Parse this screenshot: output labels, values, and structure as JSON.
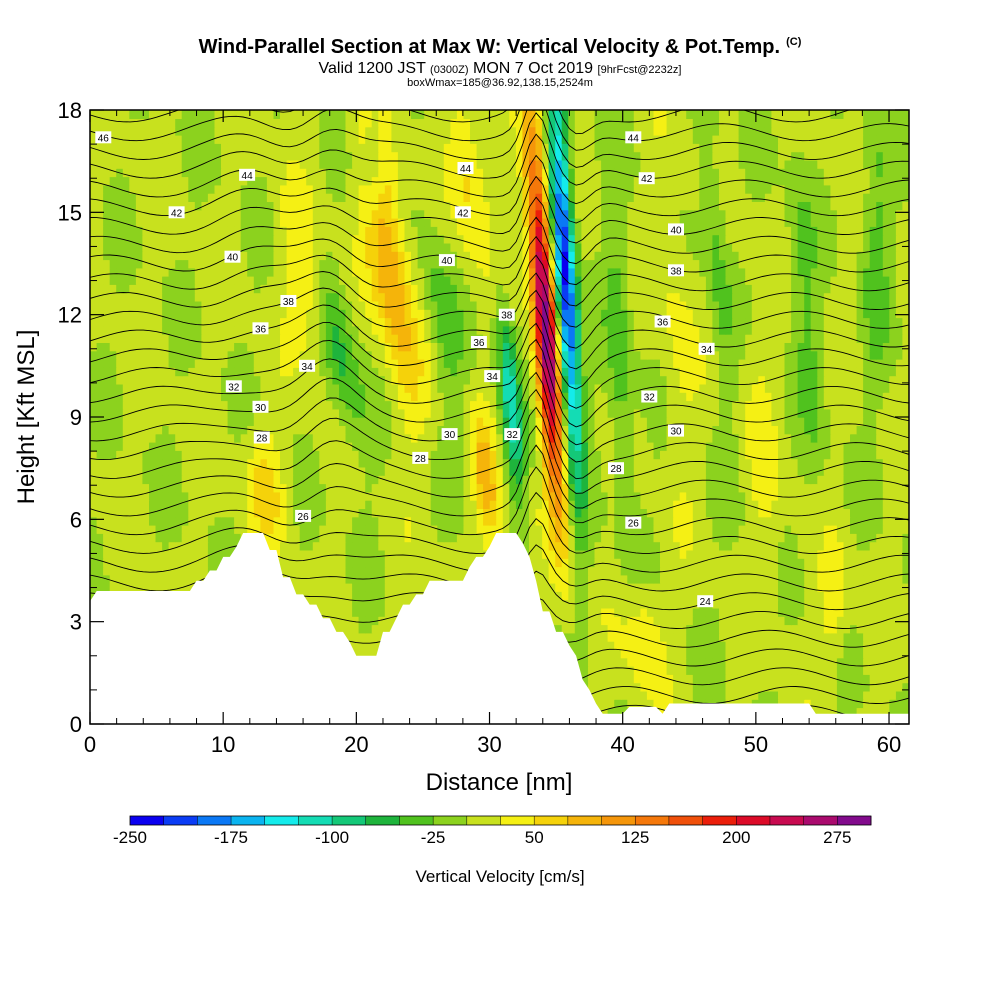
{
  "title": {
    "main": "Wind-Parallel Section at Max W: Vertical Velocity & Pot.Temp.",
    "copyright": "(C)",
    "valid_prefix": "Valid 1200 JST",
    "valid_utc": "(0300Z)",
    "valid_date": "MON 7 Oct 2019",
    "forecast": "[9hrFcst@2232z]",
    "box_info": "boxWmax=185@36.92,138.15,2524m"
  },
  "chart_data": {
    "type": "heatmap",
    "xlabel": "Distance [nm]",
    "ylabel": "Height [Kft MSL]",
    "xlim": [
      0,
      61.5
    ],
    "ylim": [
      0,
      18
    ],
    "x_ticks": [
      0,
      10,
      20,
      30,
      40,
      50,
      60
    ],
    "y_ticks": [
      0,
      3,
      6,
      9,
      12,
      15,
      18
    ],
    "colorbar": {
      "label": "Vertical Velocity [cm/s]",
      "tick_labels": [
        "-250",
        "-175",
        "-100",
        "-25",
        "50",
        "125",
        "200",
        "275"
      ],
      "tick_values": [
        -250,
        -175,
        -100,
        -25,
        50,
        125,
        200,
        275
      ],
      "range": [
        -250,
        300
      ],
      "step": 25,
      "colors": [
        "#0a00f0",
        "#0a3cf5",
        "#0a78f5",
        "#0ab4f0",
        "#14ebeb",
        "#14dcb4",
        "#14c878",
        "#1eb43c",
        "#50c21e",
        "#8cd21e",
        "#c8e11e",
        "#f5f014",
        "#f5d20a",
        "#f5b40a",
        "#f5960a",
        "#f5780a",
        "#f0500a",
        "#eb1e0a",
        "#dc0a28",
        "#c80a50",
        "#aa0a6e",
        "#820a8c"
      ]
    },
    "theta_contour_labels": [
      {
        "label": "46",
        "x": 1,
        "y": 17.2
      },
      {
        "label": "44",
        "x": 11.8,
        "y": 16.1
      },
      {
        "label": "42",
        "x": 6.5,
        "y": 15
      },
      {
        "label": "40",
        "x": 10.7,
        "y": 13.7
      },
      {
        "label": "38",
        "x": 14.9,
        "y": 12.4
      },
      {
        "label": "36",
        "x": 12.8,
        "y": 11.6
      },
      {
        "label": "34",
        "x": 16.3,
        "y": 10.5
      },
      {
        "label": "32",
        "x": 10.8,
        "y": 9.9
      },
      {
        "label": "30",
        "x": 12.8,
        "y": 9.3
      },
      {
        "label": "28",
        "x": 12.9,
        "y": 8.4
      },
      {
        "label": "26",
        "x": 16,
        "y": 6.1
      },
      {
        "label": "44",
        "x": 28.2,
        "y": 16.3
      },
      {
        "label": "42",
        "x": 28,
        "y": 15
      },
      {
        "label": "40",
        "x": 26.8,
        "y": 13.6
      },
      {
        "label": "38",
        "x": 31.3,
        "y": 12
      },
      {
        "label": "36",
        "x": 29.2,
        "y": 11.2
      },
      {
        "label": "34",
        "x": 30.2,
        "y": 10.2
      },
      {
        "label": "32",
        "x": 31.7,
        "y": 8.5
      },
      {
        "label": "30",
        "x": 27,
        "y": 8.5
      },
      {
        "label": "28",
        "x": 24.8,
        "y": 7.8
      },
      {
        "label": "44",
        "x": 40.8,
        "y": 17.2
      },
      {
        "label": "42",
        "x": 41.8,
        "y": 16
      },
      {
        "label": "40",
        "x": 44,
        "y": 14.5
      },
      {
        "label": "38",
        "x": 44,
        "y": 13.3
      },
      {
        "label": "36",
        "x": 43,
        "y": 11.8
      },
      {
        "label": "34",
        "x": 46.3,
        "y": 11
      },
      {
        "label": "32",
        "x": 42,
        "y": 9.6
      },
      {
        "label": "30",
        "x": 44,
        "y": 8.6
      },
      {
        "label": "28",
        "x": 39.5,
        "y": 7.5
      },
      {
        "label": "26",
        "x": 40.8,
        "y": 5.9
      },
      {
        "label": "24",
        "x": 46.2,
        "y": 3.6
      }
    ],
    "terrain": [
      [
        0,
        3.6
      ],
      [
        0.5,
        3.9
      ],
      [
        7.5,
        3.9
      ],
      [
        8,
        4.2
      ],
      [
        8.5,
        4.2
      ],
      [
        9,
        4.5
      ],
      [
        9.5,
        4.5
      ],
      [
        10,
        4.9
      ],
      [
        10.5,
        4.9
      ],
      [
        11,
        5.2
      ],
      [
        11.5,
        5.6
      ],
      [
        13,
        5.6
      ],
      [
        13.5,
        5.1
      ],
      [
        14,
        5.1
      ],
      [
        14.5,
        4.3
      ],
      [
        15,
        4.3
      ],
      [
        15.5,
        3.8
      ],
      [
        16,
        3.8
      ],
      [
        16.5,
        3.5
      ],
      [
        17,
        3.5
      ],
      [
        17.5,
        3.1
      ],
      [
        18,
        3.1
      ],
      [
        18.5,
        2.7
      ],
      [
        19,
        2.7
      ],
      [
        19.5,
        2.4
      ],
      [
        20,
        2
      ],
      [
        21.5,
        2
      ],
      [
        22,
        2.7
      ],
      [
        22.5,
        2.7
      ],
      [
        23,
        3.1
      ],
      [
        23.5,
        3.5
      ],
      [
        24,
        3.5
      ],
      [
        24.5,
        3.8
      ],
      [
        25,
        3.8
      ],
      [
        25.5,
        4.2
      ],
      [
        26,
        4.2
      ],
      [
        26.5,
        4.2
      ],
      [
        28,
        4.2
      ],
      [
        28.5,
        4.6
      ],
      [
        29,
        4.9
      ],
      [
        29.5,
        4.9
      ],
      [
        30,
        5.2
      ],
      [
        30.5,
        5.6
      ],
      [
        32,
        5.6
      ],
      [
        32.5,
        5.3
      ],
      [
        33,
        4.9
      ],
      [
        33.5,
        4.2
      ],
      [
        34,
        3.3
      ],
      [
        34.5,
        3.3
      ],
      [
        35,
        2.7
      ],
      [
        35.5,
        2.7
      ],
      [
        36,
        2.3
      ],
      [
        36.5,
        2
      ],
      [
        37,
        1.3
      ],
      [
        37.5,
        1
      ],
      [
        38,
        0.6
      ],
      [
        38.5,
        0.3
      ],
      [
        40,
        0.3
      ],
      [
        40.5,
        0.5
      ],
      [
        41,
        0.5
      ],
      [
        42.5,
        0.5
      ],
      [
        43,
        0.3
      ],
      [
        43.5,
        0.6
      ],
      [
        54,
        0.6
      ],
      [
        54.5,
        0.3
      ],
      [
        61.5,
        0.3
      ]
    ]
  }
}
